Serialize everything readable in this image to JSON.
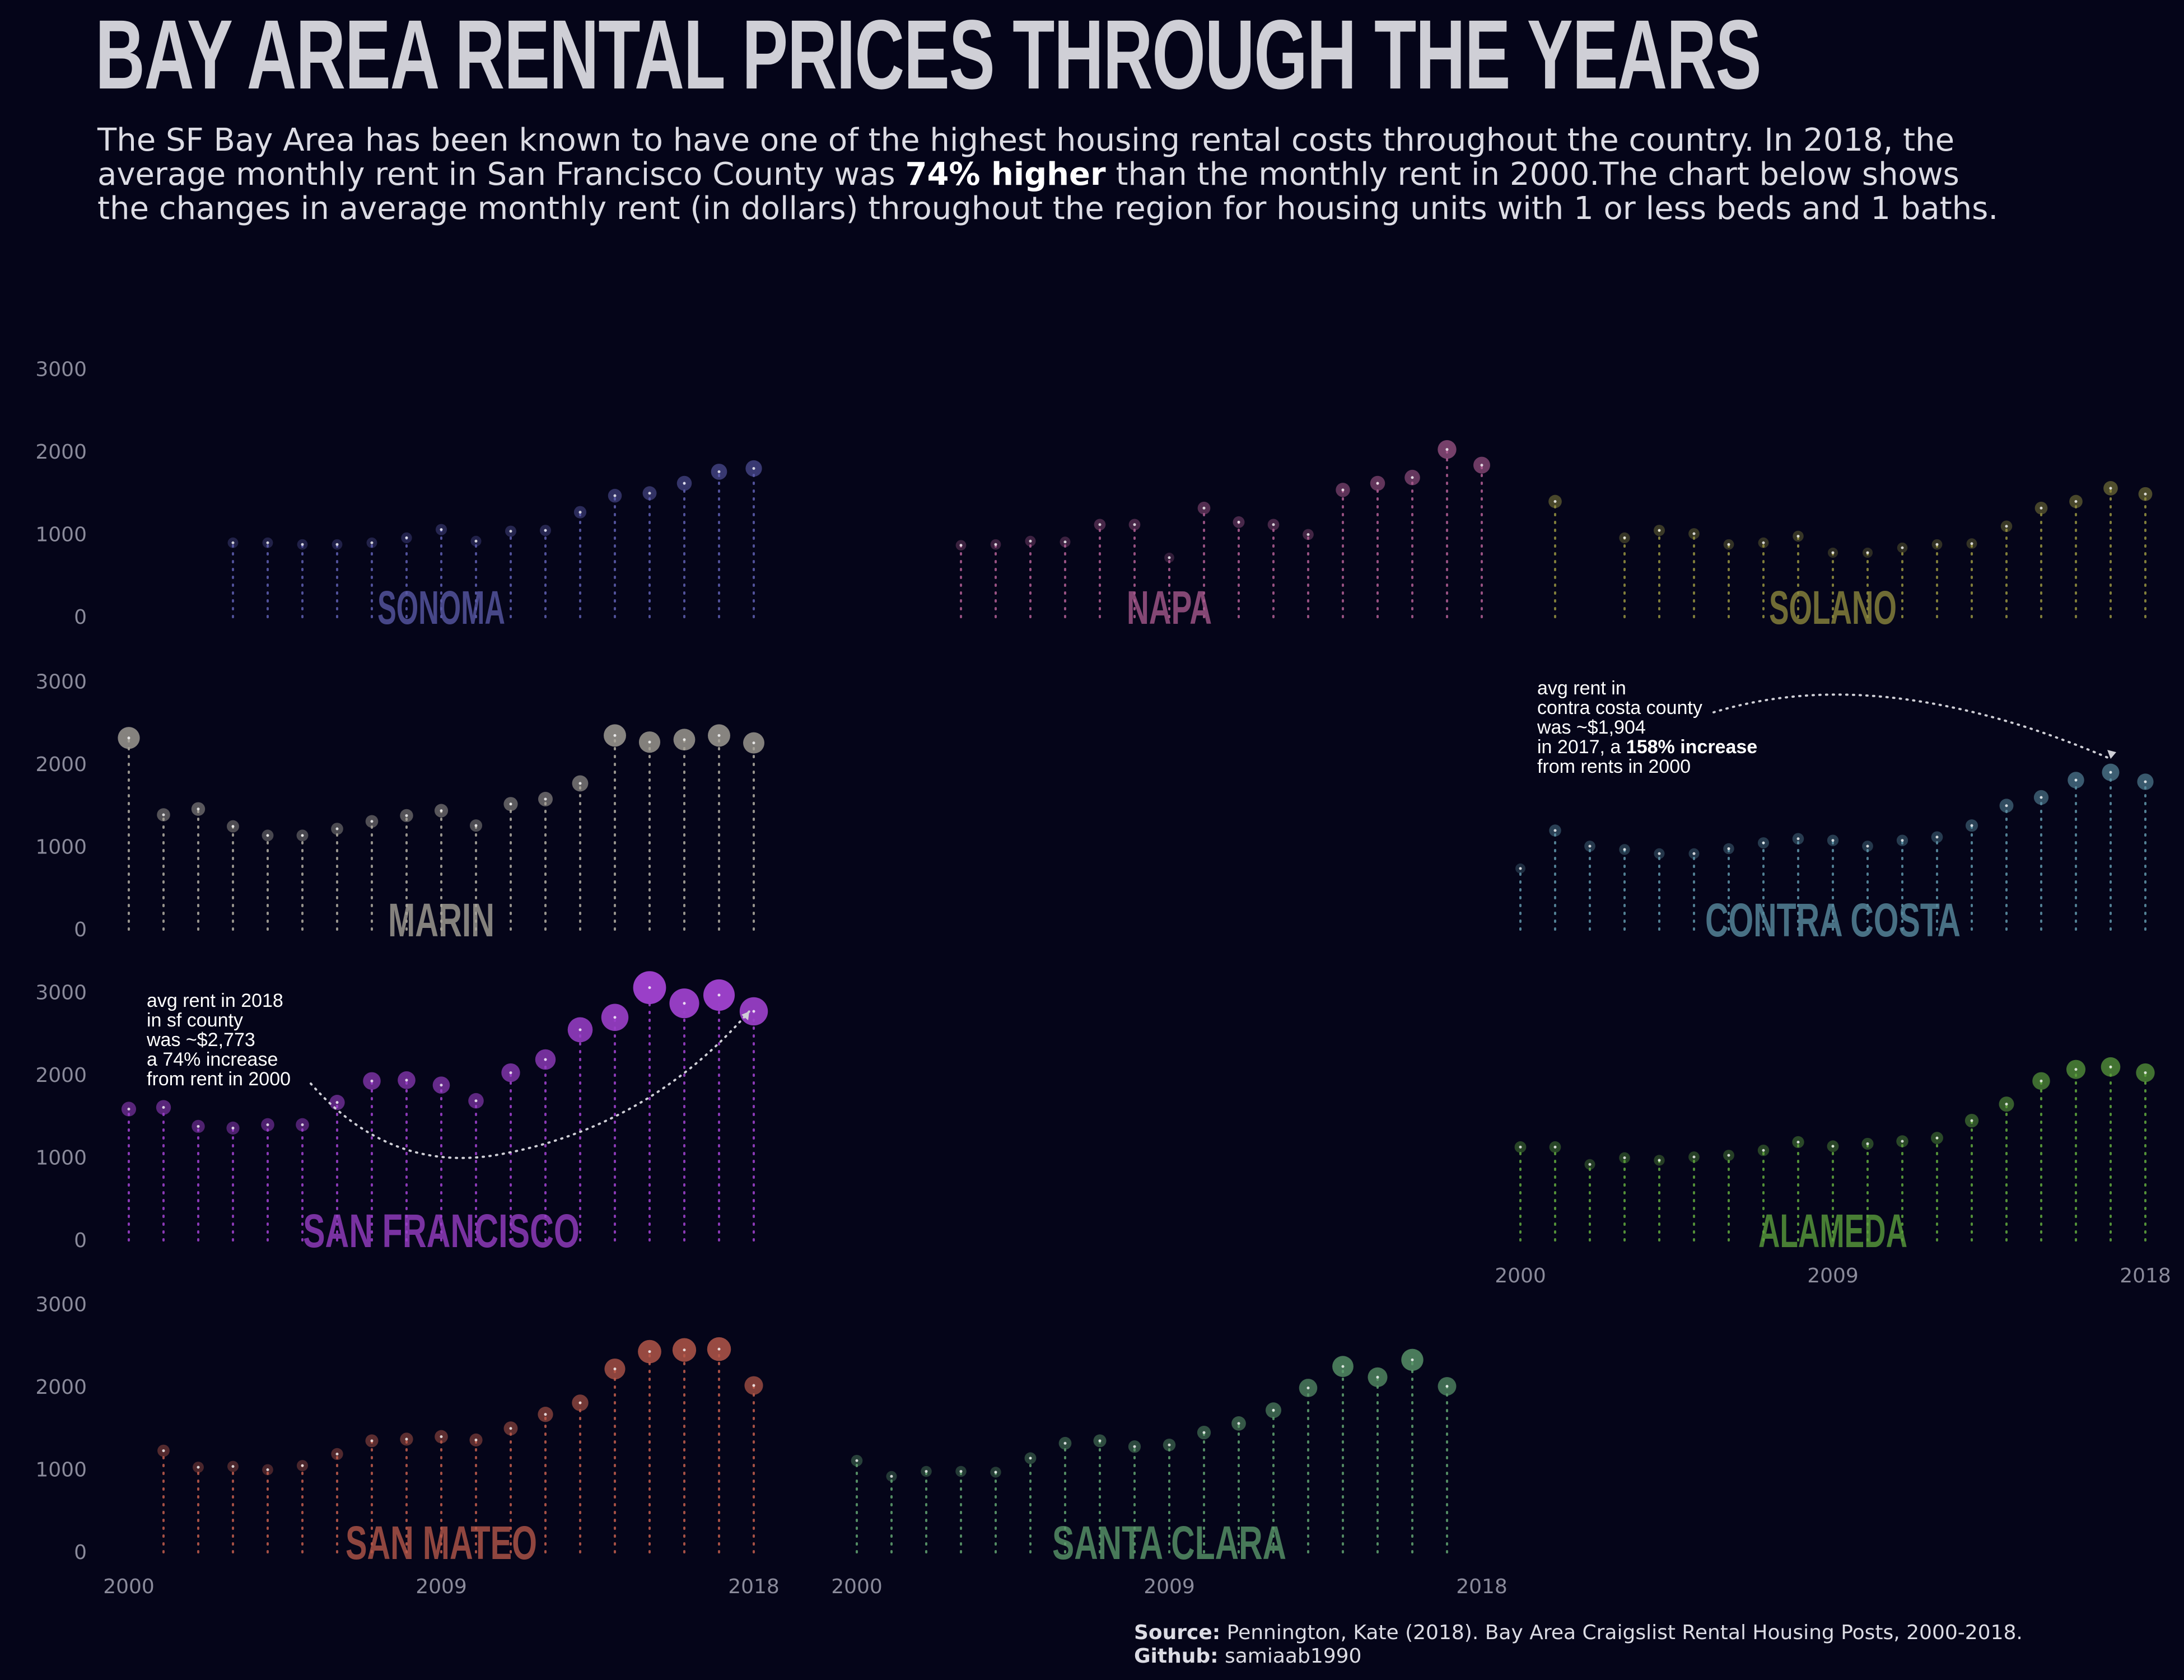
{
  "title": "BAY AREA RENTAL PRICES THROUGH THE YEARS",
  "subtitle": {
    "before": "The SF Bay Area has been known to have one of the highest housing rental costs throughout the country. In 2018, the average monthly rent in San Francisco County was ",
    "highlight": "74% higher",
    "after": " than the monthly rent in 2000.The chart below shows the changes in average monthly rent (in dollars) throughout the region for housing units with 1 or less beds and 1 baths."
  },
  "footer": {
    "source_label": "Source:",
    "source_text": " Pennington, Kate (2018). Bay Area Craigslist Rental Housing Posts, 2000-2018.",
    "github_label": "Github:",
    "github_text": " samiaab1990"
  },
  "chart_data": {
    "type": "scatter",
    "title": "BAY AREA RENTAL PRICES THROUGH THE YEARS",
    "x_ticks": [
      "2000",
      "2009",
      "2018"
    ],
    "y_ticks": [
      "0",
      "1000",
      "2000",
      "3000"
    ],
    "ylim": [
      0,
      3000
    ],
    "xlim": [
      2000,
      2018
    ],
    "grid": false,
    "counties": [
      {
        "name": "SONOMA",
        "color": "#5a5aa8",
        "row": 0,
        "col": 0,
        "years": [
          2003,
          2004,
          2005,
          2006,
          2007,
          2008,
          2009,
          2010,
          2011,
          2012,
          2013,
          2014,
          2015,
          2016,
          2017,
          2018
        ],
        "values": [
          900,
          900,
          880,
          880,
          900,
          960,
          1060,
          920,
          1040,
          1050,
          1270,
          1470,
          1500,
          1620,
          1760,
          1800
        ]
      },
      {
        "name": "NAPA",
        "color": "#a85a8e",
        "row": 0,
        "col": 1,
        "years": [
          2003,
          2004,
          2005,
          2006,
          2007,
          2008,
          2009,
          2010,
          2011,
          2012,
          2013,
          2014,
          2015,
          2016,
          2017,
          2018
        ],
        "values": [
          870,
          880,
          920,
          910,
          1120,
          1120,
          720,
          1320,
          1150,
          1120,
          1000,
          1540,
          1620,
          1690,
          2030,
          1840
        ]
      },
      {
        "name": "SOLANO",
        "color": "#8e8a3e",
        "row": 0,
        "col": 2,
        "years": [
          2001,
          2003,
          2004,
          2005,
          2006,
          2007,
          2008,
          2009,
          2010,
          2011,
          2012,
          2013,
          2014,
          2015,
          2016,
          2017,
          2018
        ],
        "values": [
          1400,
          960,
          1050,
          1010,
          880,
          900,
          980,
          780,
          780,
          840,
          880,
          890,
          1100,
          1320,
          1400,
          1560,
          1490
        ]
      },
      {
        "name": "MARIN",
        "color": "#a8a49a",
        "row": 1,
        "col": 0,
        "years": [
          2000,
          2001,
          2002,
          2003,
          2004,
          2005,
          2006,
          2007,
          2008,
          2009,
          2010,
          2011,
          2012,
          2013,
          2014,
          2015,
          2016,
          2017,
          2018
        ],
        "values": [
          2320,
          1390,
          1460,
          1250,
          1140,
          1140,
          1220,
          1310,
          1380,
          1440,
          1260,
          1520,
          1580,
          1770,
          2350,
          2270,
          2300,
          2350,
          2260
        ]
      },
      {
        "name": "CONTRA COSTA",
        "color": "#5b8ea2",
        "row": 1,
        "col": 2,
        "years": [
          2000,
          2001,
          2002,
          2003,
          2004,
          2005,
          2006,
          2007,
          2008,
          2009,
          2010,
          2011,
          2012,
          2013,
          2014,
          2015,
          2016,
          2017,
          2018
        ],
        "values": [
          740,
          1200,
          1010,
          970,
          920,
          920,
          980,
          1050,
          1100,
          1080,
          1010,
          1080,
          1120,
          1260,
          1500,
          1600,
          1810,
          1904,
          1790
        ]
      },
      {
        "name": "SAN FRANCISCO",
        "color": "#9a3fc8",
        "row": 2,
        "col": 0,
        "years": [
          2000,
          2001,
          2002,
          2003,
          2004,
          2005,
          2006,
          2007,
          2008,
          2009,
          2010,
          2011,
          2012,
          2013,
          2014,
          2015,
          2016,
          2017,
          2018
        ],
        "values": [
          1590,
          1610,
          1380,
          1360,
          1400,
          1400,
          1670,
          1930,
          1940,
          1880,
          1690,
          2030,
          2190,
          2550,
          2700,
          3060,
          2870,
          2970,
          2773
        ]
      },
      {
        "name": "ALAMEDA",
        "color": "#5ca03c",
        "row": 2,
        "col": 2,
        "years": [
          2000,
          2001,
          2002,
          2003,
          2004,
          2005,
          2006,
          2007,
          2008,
          2009,
          2010,
          2011,
          2012,
          2013,
          2014,
          2015,
          2016,
          2017,
          2018
        ],
        "values": [
          1130,
          1130,
          920,
          1000,
          970,
          1010,
          1030,
          1090,
          1190,
          1140,
          1170,
          1200,
          1240,
          1450,
          1650,
          1930,
          2070,
          2100,
          2030
        ]
      },
      {
        "name": "SAN MATEO",
        "color": "#b8594a",
        "row": 3,
        "col": 0,
        "years": [
          2001,
          2002,
          2003,
          2004,
          2005,
          2006,
          2007,
          2008,
          2009,
          2010,
          2011,
          2012,
          2013,
          2014,
          2015,
          2016,
          2017,
          2018
        ],
        "values": [
          1230,
          1030,
          1040,
          1000,
          1050,
          1190,
          1350,
          1370,
          1400,
          1360,
          1500,
          1670,
          1810,
          2220,
          2430,
          2450,
          2460,
          2020
        ]
      },
      {
        "name": "SANTA CLARA",
        "color": "#5c9a6c",
        "row": 3,
        "col": 1,
        "years": [
          2000,
          2001,
          2002,
          2003,
          2004,
          2005,
          2006,
          2007,
          2008,
          2009,
          2010,
          2011,
          2012,
          2013,
          2014,
          2015,
          2016,
          2017,
          2018
        ],
        "values": [
          1110,
          920,
          980,
          980,
          970,
          1140,
          1320,
          1350,
          1280,
          1300,
          1450,
          1560,
          1720,
          1990,
          2250,
          2120,
          2330,
          2010,
          null
        ]
      }
    ],
    "annotations": [
      {
        "county": "CONTRA COSTA",
        "lines": [
          "avg rent in",
          "contra costa county",
          "was ~$1,904"
        ],
        "line4_before": "in 2017, a ",
        "line4_bold": "158% increase",
        "line5": "from rents in 2000"
      },
      {
        "county": "SAN FRANCISCO",
        "lines": [
          "avg rent in 2018",
          "in sf county",
          "was ~$2,773",
          "a 74% increase",
          "from rent in 2000"
        ]
      }
    ]
  }
}
